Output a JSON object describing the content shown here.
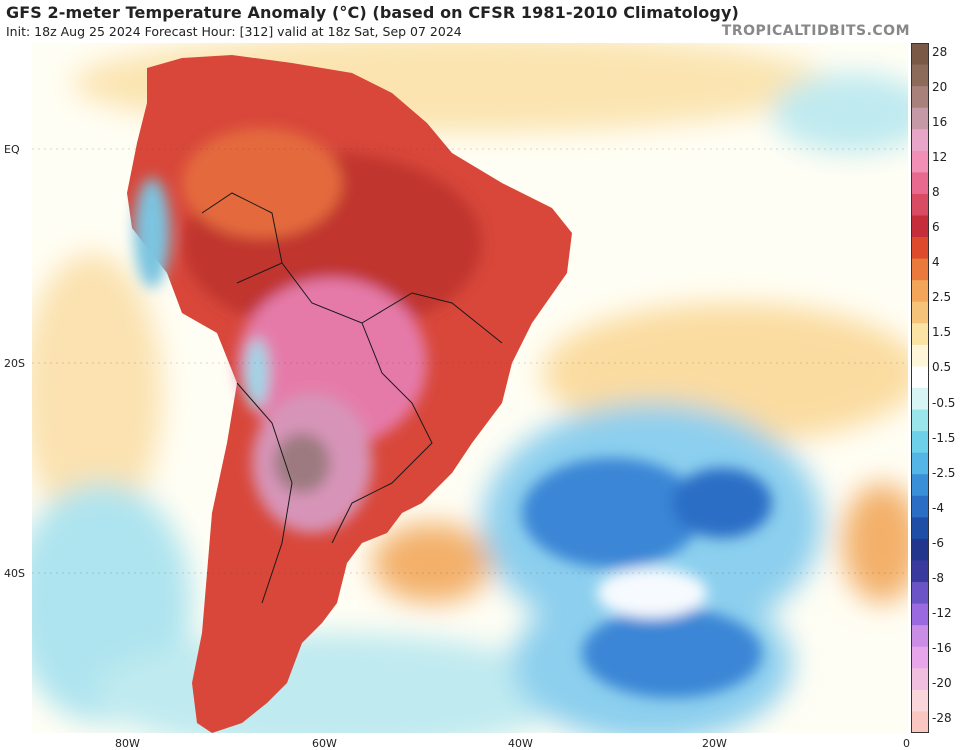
{
  "header": {
    "title": "GFS 2-meter Temperature Anomaly (°C) (based on CFSR 1981-2010 Climatology)",
    "subtitle": "Init: 18z Aug 25 2024   Forecast Hour: [312]   valid at 18z Sat, Sep 07 2024",
    "watermark": "TROPICALTIDBITS.COM"
  },
  "axes": {
    "lat_labels": [
      "EQ",
      "20S",
      "40S"
    ],
    "lon_labels": [
      "80W",
      "60W",
      "40W",
      "20W",
      "0"
    ]
  },
  "colorbar": {
    "labels": [
      "28",
      "20",
      "16",
      "12",
      "8",
      "6",
      "4",
      "2.5",
      "1.5",
      "0.5",
      "-0.5",
      "-1.5",
      "-2.5",
      "-4",
      "-6",
      "-8",
      "-12",
      "-16",
      "-20",
      "-28"
    ],
    "colors": [
      "#7a5a46",
      "#8d6b5a",
      "#a7817a",
      "#c59aa6",
      "#e7a6c8",
      "#f28fb6",
      "#e86a8e",
      "#d94b62",
      "#c52d3b",
      "#dd4a2c",
      "#ea7a3c",
      "#f3a65a",
      "#f6c37a",
      "#fae3a4",
      "#fdf6d8",
      "#ffffff",
      "#d8f5f6",
      "#9ae5ec",
      "#6fd0ea",
      "#54b5e6",
      "#3a8fd9",
      "#2a6ec6",
      "#1e4ea6",
      "#23368e",
      "#3a3a9e",
      "#6b55c6",
      "#9a6ae0",
      "#c98de6",
      "#e7a6e9",
      "#f0bfe0",
      "#f8d6da",
      "#f9c6c2"
    ]
  }
}
